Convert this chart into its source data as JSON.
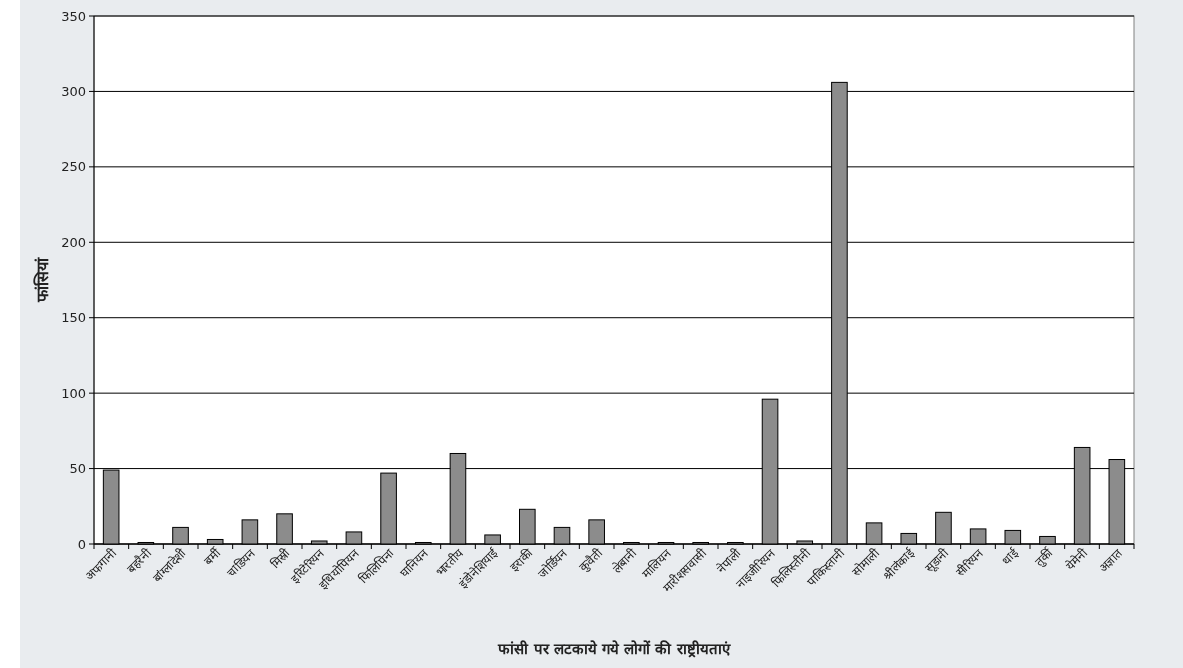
{
  "chart_data": {
    "type": "bar",
    "xlabel": "फांसी पर लटकाये गये लोगों की राष्ट्रीयताएं",
    "ylabel": "फांसियां",
    "categories": [
      "अफगानी",
      "बहरैनी",
      "बांग्लादेशी",
      "बर्मी",
      "चाडियन",
      "मिस्री",
      "इरिटेरियन",
      "इथियोपियन",
      "फिलिपिना",
      "घानियन",
      "भारतीय",
      "इंडोनेशियाई",
      "इराकी",
      "जोर्डियन",
      "कुवैती",
      "लेबानी",
      "मालियन",
      "मारीशसवासी",
      "नेपाली",
      "नाइजीरियन",
      "फिलिस्तीनी",
      "पाकिस्तानी",
      "सोमाली",
      "श्रीलंकाई",
      "सूडानी",
      "सीरियन",
      "थाई",
      "तुर्की",
      "येमेनी",
      "अज्ञात"
    ],
    "values": [
      49,
      1,
      11,
      3,
      16,
      20,
      2,
      8,
      47,
      1,
      60,
      6,
      23,
      11,
      16,
      1,
      1,
      1,
      1,
      96,
      2,
      306,
      14,
      7,
      21,
      10,
      9,
      5,
      64,
      56
    ],
    "color": "#8c8c8c",
    "ylim": [
      0,
      350
    ],
    "yticks": [
      0,
      50,
      100,
      150,
      200,
      250,
      300,
      350
    ],
    "grid": "y"
  }
}
